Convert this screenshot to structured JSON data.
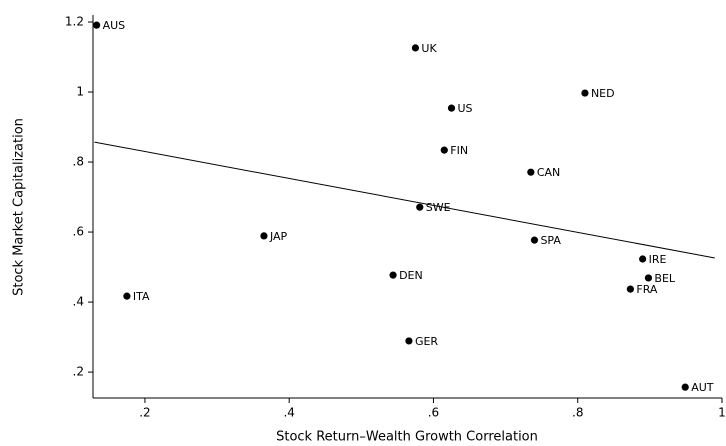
{
  "chart_data": {
    "type": "scatter",
    "x_label": "Stock Return–Wealth Growth Correlation",
    "y_label": "Stock Market Capitalization",
    "labels": [
      "AUS",
      "UK",
      "NED",
      "US",
      "FIN",
      "CAN",
      "SWE",
      "JAP",
      "SPA",
      "IRE",
      "BEL",
      "FRA",
      "DEN",
      "ITA",
      "GER",
      "AUT"
    ],
    "x": [
      0.133,
      0.575,
      0.81,
      0.625,
      0.615,
      0.735,
      0.581,
      0.365,
      0.74,
      0.89,
      0.898,
      0.873,
      0.544,
      0.175,
      0.566,
      0.949
    ],
    "y": [
      1.191,
      1.126,
      0.997,
      0.954,
      0.834,
      0.771,
      0.671,
      0.589,
      0.577,
      0.523,
      0.469,
      0.437,
      0.477,
      0.417,
      0.289,
      0.157
    ],
    "color": "#000000",
    "fit": {
      "x": [
        0.13,
        0.99
      ],
      "y": [
        0.857,
        0.526
      ]
    },
    "xlim": [
      0.128,
      1
    ],
    "ylim": [
      0.126,
      1.22
    ],
    "xticks": [
      {
        "value": 0.2,
        "label": ".2"
      },
      {
        "value": 0.4,
        "label": ".4"
      },
      {
        "value": 0.6,
        "label": ".6"
      },
      {
        "value": 0.8,
        "label": ".8"
      },
      1
    ],
    "yticks": [
      {
        "value": 0.2,
        "label": ".2"
      },
      {
        "value": 0.4,
        "label": ".4"
      },
      {
        "value": 0.6,
        "label": ".6"
      },
      {
        "value": 0.8,
        "label": ".8"
      },
      1,
      1.2
    ]
  }
}
